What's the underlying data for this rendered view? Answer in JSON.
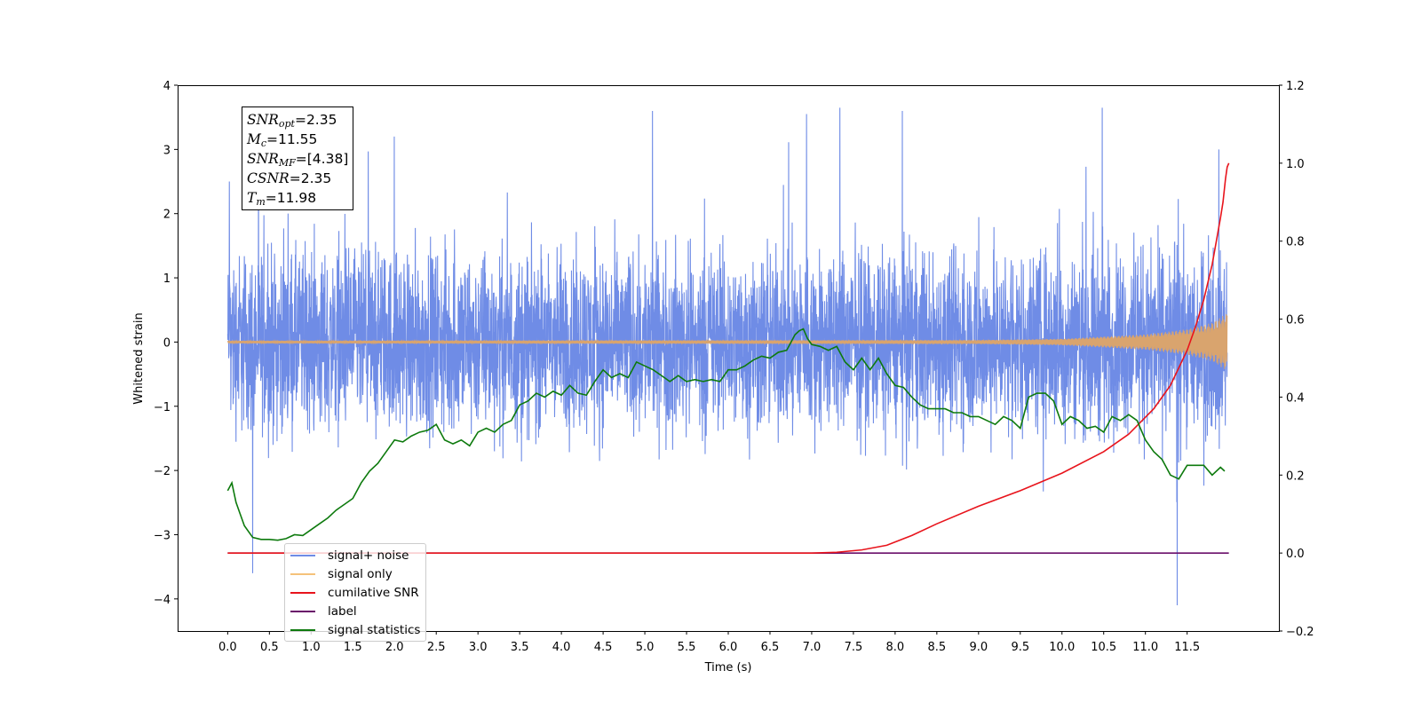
{
  "chart_data": {
    "type": "line",
    "xlabel": "Time (s)",
    "ylabel": "Whitened strain",
    "xlim": [
      -0.6,
      12.6
    ],
    "ylim": [
      -4.5,
      4.0
    ],
    "y2lim": [
      -0.2,
      1.2
    ],
    "x_ticks": [
      "0.0",
      "0.5",
      "1.0",
      "1.5",
      "2.0",
      "2.5",
      "3.0",
      "3.5",
      "4.0",
      "4.5",
      "5.0",
      "5.5",
      "6.0",
      "6.5",
      "7.0",
      "7.5",
      "8.0",
      "8.5",
      "9.0",
      "9.5",
      "10.0",
      "10.5",
      "11.0",
      "11.5"
    ],
    "y_ticks": [
      "−4",
      "−3",
      "−2",
      "−1",
      "0",
      "1",
      "2",
      "3",
      "4"
    ],
    "y2_ticks": [
      "−0.2",
      "0.0",
      "0.2",
      "0.4",
      "0.6",
      "0.8",
      "1.0",
      "1.2"
    ],
    "info_box": {
      "snr_opt": {
        "sym": "SNR",
        "sub": "opt",
        "val": "=2.35"
      },
      "mc": {
        "sym": "M",
        "sub": "c",
        "val": "=11.55"
      },
      "snr_mf": {
        "sym": "SNR",
        "sub": "MF",
        "val": "=[4.38]"
      },
      "csnr": {
        "sym": "CSNR",
        "sub": "",
        "val": "=2.35"
      },
      "tm": {
        "sym": "T",
        "sub": "m",
        "val": "=11.98"
      }
    },
    "series": [
      {
        "name": "signal+ noise",
        "color": "#6f8ce6",
        "axis": "left",
        "description": "noisy whitened strain, approx. +/-1.5 core with spikes to +/-3.6",
        "noise_range": [
          -4.1,
          3.65
        ],
        "peaks": [
          [
            0.02,
            2.5
          ],
          [
            0.3,
            -3.6
          ],
          [
            2.0,
            3.2
          ],
          [
            5.1,
            3.6
          ],
          [
            6.95,
            3.55
          ],
          [
            7.35,
            3.65
          ],
          [
            8.1,
            3.6
          ],
          [
            10.5,
            3.65
          ],
          [
            11.4,
            -4.1
          ],
          [
            11.9,
            3.0
          ]
        ]
      },
      {
        "name": "signal only",
        "color": "#f5b25a",
        "axis": "left",
        "description": "chirp signal, amplitude growing toward 11.98 s",
        "envelope": [
          [
            0.0,
            0.02
          ],
          [
            9.0,
            0.03
          ],
          [
            10.0,
            0.05
          ],
          [
            11.0,
            0.12
          ],
          [
            11.5,
            0.2
          ],
          [
            11.8,
            0.3
          ],
          [
            11.98,
            0.45
          ]
        ]
      },
      {
        "name": "cumilative SNR",
        "color": "#e8141c",
        "axis": "right",
        "x": [
          0.0,
          7.0,
          7.3,
          7.6,
          7.9,
          8.2,
          8.5,
          9.0,
          9.5,
          10.0,
          10.5,
          10.8,
          11.1,
          11.3,
          11.5,
          11.6,
          11.7,
          11.8,
          11.85,
          11.9,
          11.93,
          11.96,
          11.98,
          12.0
        ],
        "y": [
          0.0,
          0.0,
          0.002,
          0.008,
          0.02,
          0.045,
          0.075,
          0.12,
          0.16,
          0.205,
          0.26,
          0.305,
          0.37,
          0.43,
          0.52,
          0.58,
          0.65,
          0.74,
          0.8,
          0.86,
          0.9,
          0.96,
          0.99,
          1.0
        ]
      },
      {
        "name": "label",
        "color": "#6a0f6a",
        "axis": "right",
        "x": [
          0.0,
          12.0
        ],
        "y": [
          0.0,
          0.0
        ]
      },
      {
        "name": "signal statistics",
        "color": "#0d7a0d",
        "axis": "right",
        "x": [
          0.0,
          0.05,
          0.1,
          0.15,
          0.2,
          0.3,
          0.4,
          0.5,
          0.6,
          0.7,
          0.8,
          0.9,
          1.0,
          1.1,
          1.2,
          1.3,
          1.4,
          1.5,
          1.6,
          1.7,
          1.8,
          1.9,
          2.0,
          2.1,
          2.2,
          2.3,
          2.4,
          2.5,
          2.6,
          2.7,
          2.8,
          2.9,
          3.0,
          3.1,
          3.2,
          3.3,
          3.4,
          3.5,
          3.6,
          3.7,
          3.8,
          3.9,
          4.0,
          4.1,
          4.2,
          4.3,
          4.4,
          4.5,
          4.6,
          4.7,
          4.8,
          4.9,
          5.0,
          5.1,
          5.2,
          5.3,
          5.4,
          5.5,
          5.6,
          5.7,
          5.8,
          5.9,
          6.0,
          6.1,
          6.2,
          6.3,
          6.4,
          6.5,
          6.6,
          6.7,
          6.8,
          6.85,
          6.9,
          6.95,
          7.0,
          7.1,
          7.2,
          7.3,
          7.4,
          7.5,
          7.6,
          7.7,
          7.8,
          7.9,
          8.0,
          8.1,
          8.2,
          8.3,
          8.4,
          8.5,
          8.6,
          8.7,
          8.8,
          8.9,
          9.0,
          9.1,
          9.2,
          9.3,
          9.4,
          9.5,
          9.6,
          9.7,
          9.8,
          9.9,
          10.0,
          10.1,
          10.2,
          10.3,
          10.4,
          10.5,
          10.6,
          10.7,
          10.8,
          10.9,
          11.0,
          11.1,
          11.2,
          11.3,
          11.4,
          11.5,
          11.6,
          11.7,
          11.8,
          11.9,
          11.95
        ],
        "y": [
          0.16,
          0.18,
          0.13,
          0.1,
          0.07,
          0.04,
          0.035,
          0.035,
          0.033,
          0.037,
          0.047,
          0.045,
          0.06,
          0.075,
          0.09,
          0.11,
          0.125,
          0.14,
          0.18,
          0.21,
          0.23,
          0.26,
          0.29,
          0.285,
          0.3,
          0.31,
          0.315,
          0.33,
          0.29,
          0.28,
          0.29,
          0.275,
          0.31,
          0.32,
          0.31,
          0.33,
          0.34,
          0.38,
          0.39,
          0.41,
          0.4,
          0.415,
          0.405,
          0.43,
          0.41,
          0.405,
          0.44,
          0.47,
          0.45,
          0.46,
          0.45,
          0.49,
          0.48,
          0.47,
          0.455,
          0.44,
          0.455,
          0.44,
          0.445,
          0.44,
          0.445,
          0.44,
          0.47,
          0.47,
          0.48,
          0.495,
          0.505,
          0.5,
          0.515,
          0.52,
          0.56,
          0.57,
          0.575,
          0.55,
          0.535,
          0.53,
          0.52,
          0.53,
          0.49,
          0.47,
          0.5,
          0.47,
          0.5,
          0.46,
          0.43,
          0.425,
          0.4,
          0.38,
          0.37,
          0.37,
          0.37,
          0.36,
          0.36,
          0.35,
          0.35,
          0.34,
          0.33,
          0.35,
          0.34,
          0.32,
          0.4,
          0.41,
          0.41,
          0.39,
          0.33,
          0.35,
          0.34,
          0.32,
          0.325,
          0.31,
          0.35,
          0.34,
          0.355,
          0.34,
          0.29,
          0.26,
          0.24,
          0.2,
          0.19,
          0.225,
          0.225,
          0.225,
          0.2,
          0.22,
          0.21
        ]
      },
      {
        "name": "signal statistics",
        "color": "#0d7a0d",
        "axis": "right",
        "x": [],
        "y": []
      }
    ]
  },
  "legend": {
    "items": [
      {
        "label": "signal+ noise",
        "color": "#6f8ce6"
      },
      {
        "label": "signal only",
        "color": "#f5c27a"
      },
      {
        "label": "cumilative SNR",
        "color": "#e8141c"
      },
      {
        "label": "label",
        "color": "#6a0f6a"
      },
      {
        "label": "signal statistics",
        "color": "#0d7a0d"
      }
    ]
  }
}
